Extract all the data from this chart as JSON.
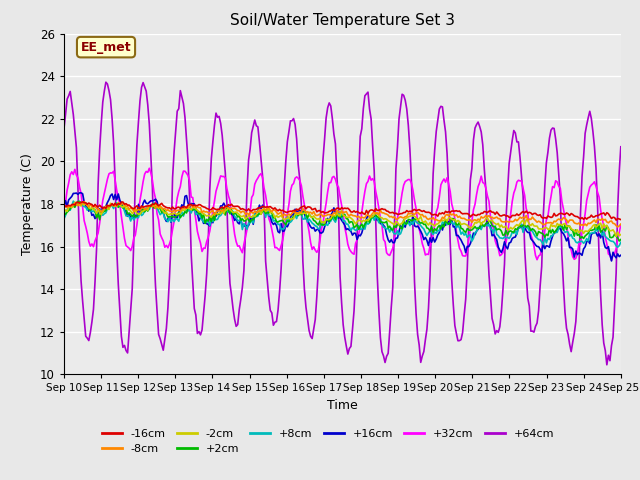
{
  "title": "Soil/Water Temperature Set 3",
  "ylabel": "Temperature (C)",
  "xlabel": "Time",
  "annotation": "EE_met",
  "ylim": [
    10,
    26
  ],
  "yticks": [
    10,
    12,
    14,
    16,
    18,
    20,
    22,
    24,
    26
  ],
  "xtick_labels": [
    "Sep 10",
    "Sep 11",
    "Sep 12",
    "Sep 13",
    "Sep 14",
    "Sep 15",
    "Sep 16",
    "Sep 17",
    "Sep 18",
    "Sep 19",
    "Sep 20",
    "Sep 21",
    "Sep 22",
    "Sep 23",
    "Sep 24",
    "Sep 25"
  ],
  "series_order": [
    "-16cm",
    "-8cm",
    "-2cm",
    "+2cm",
    "+8cm",
    "+16cm",
    "+32cm",
    "+64cm"
  ],
  "series": {
    "-16cm": {
      "color": "#dd0000",
      "lw": 1.2
    },
    "-8cm": {
      "color": "#ff8800",
      "lw": 1.2
    },
    "-2cm": {
      "color": "#cccc00",
      "lw": 1.2
    },
    "+2cm": {
      "color": "#00bb00",
      "lw": 1.2
    },
    "+8cm": {
      "color": "#00bbbb",
      "lw": 1.2
    },
    "+16cm": {
      "color": "#0000cc",
      "lw": 1.2
    },
    "+32cm": {
      "color": "#ff00ff",
      "lw": 1.2
    },
    "+64cm": {
      "color": "#aa00cc",
      "lw": 1.2
    }
  },
  "bg_color": "#e8e8e8",
  "plot_bg_color": "#ebebeb",
  "grid_color": "#ffffff",
  "figsize": [
    6.4,
    4.8
  ],
  "dpi": 100
}
